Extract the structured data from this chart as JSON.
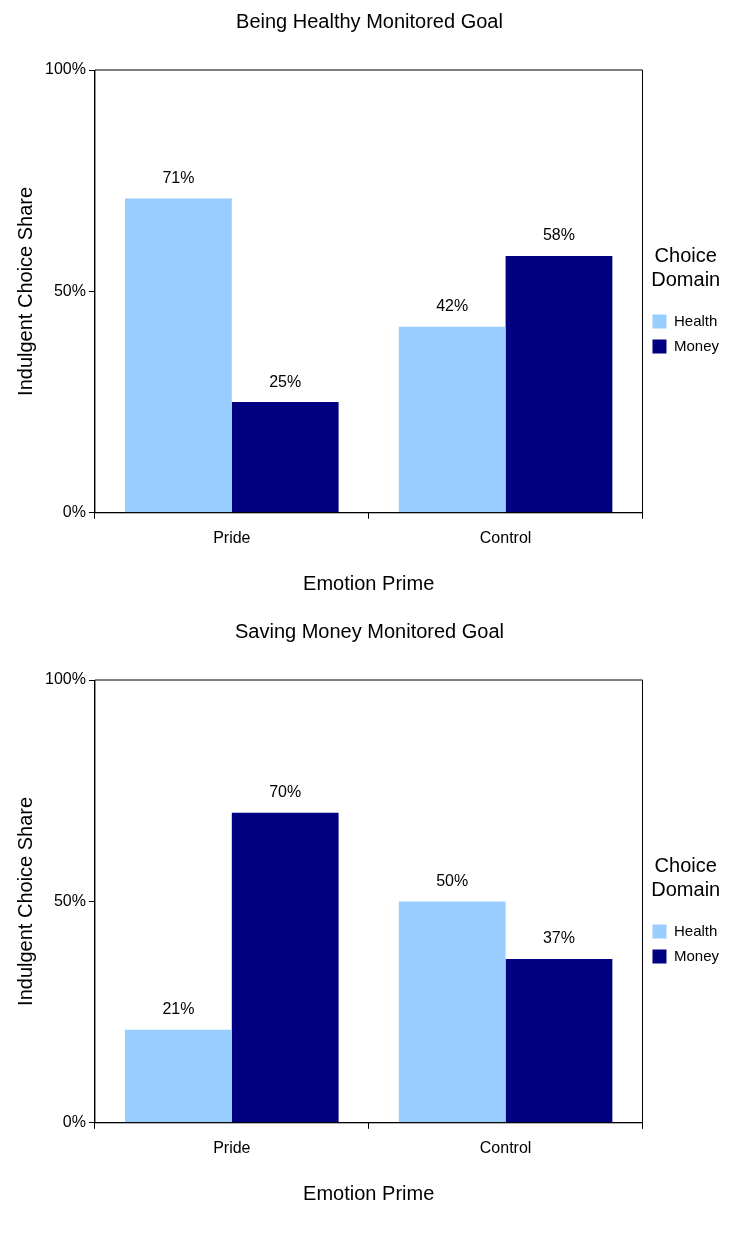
{
  "chart_data": [
    {
      "type": "bar",
      "title": "Being Healthy Monitored Goal",
      "xlabel": "Emotion Prime",
      "ylabel": "Indulgent Choice Share",
      "legend_title": "Choice Domain",
      "legend": "right",
      "grid": false,
      "categories": [
        "Pride",
        "Control"
      ],
      "ylim": [
        0,
        100
      ],
      "yticks": [
        {
          "value": 0,
          "label": "0%"
        },
        {
          "value": 50,
          "label": "50%"
        },
        {
          "value": 100,
          "label": "100%"
        }
      ],
      "series": [
        {
          "name": "Health",
          "color": "#99ccff",
          "values": [
            71,
            42
          ],
          "value_labels": [
            "71%",
            "42%"
          ]
        },
        {
          "name": "Money",
          "color": "#000080",
          "values": [
            25,
            58
          ],
          "value_labels": [
            "25%",
            "58%"
          ]
        }
      ]
    },
    {
      "type": "bar",
      "title": "Saving Money Monitored Goal",
      "xlabel": "Emotion Prime",
      "ylabel": "Indulgent Choice Share",
      "legend_title": "Choice Domain",
      "legend": "right",
      "grid": false,
      "categories": [
        "Pride",
        "Control"
      ],
      "ylim": [
        0,
        100
      ],
      "yticks": [
        {
          "value": 0,
          "label": "0%"
        },
        {
          "value": 50,
          "label": "50%"
        },
        {
          "value": 100,
          "label": "100%"
        }
      ],
      "series": [
        {
          "name": "Health",
          "color": "#99ccff",
          "values": [
            21,
            50
          ],
          "value_labels": [
            "21%",
            "50%"
          ]
        },
        {
          "name": "Money",
          "color": "#000080",
          "values": [
            70,
            37
          ],
          "value_labels": [
            "70%",
            "37%"
          ]
        }
      ]
    }
  ]
}
